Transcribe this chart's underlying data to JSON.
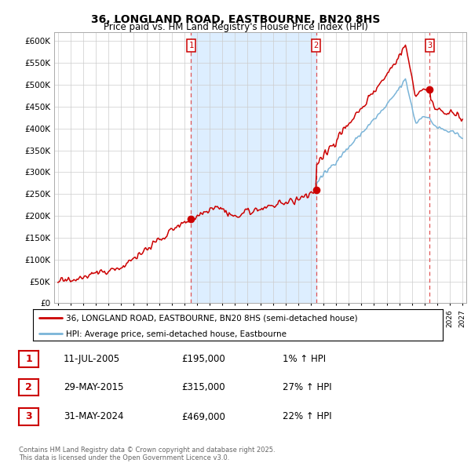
{
  "title": "36, LONGLAND ROAD, EASTBOURNE, BN20 8HS",
  "subtitle": "Price paid vs. HM Land Registry's House Price Index (HPI)",
  "ylim": [
    0,
    620000
  ],
  "yticks": [
    0,
    50000,
    100000,
    150000,
    200000,
    250000,
    300000,
    350000,
    400000,
    450000,
    500000,
    550000,
    600000
  ],
  "ytick_labels": [
    "£0",
    "£50K",
    "£100K",
    "£150K",
    "£200K",
    "£250K",
    "£300K",
    "£350K",
    "£400K",
    "£450K",
    "£500K",
    "£550K",
    "£600K"
  ],
  "hpi_color": "#7ab4d8",
  "price_color": "#cc0000",
  "vline_color": "#dd4444",
  "background_color": "#ffffff",
  "grid_color": "#cccccc",
  "shade_color": "#ddeeff",
  "hatch_color": "#dddddd",
  "purchases": [
    {
      "date_num": 2005.53,
      "price": 195000,
      "label": "1"
    },
    {
      "date_num": 2015.41,
      "price": 315000,
      "label": "2"
    },
    {
      "date_num": 2024.41,
      "price": 469000,
      "label": "3"
    }
  ],
  "legend_entries": [
    "36, LONGLAND ROAD, EASTBOURNE, BN20 8HS (semi-detached house)",
    "HPI: Average price, semi-detached house, Eastbourne"
  ],
  "table_rows": [
    {
      "num": "1",
      "date": "11-JUL-2005",
      "price": "£195,000",
      "hpi": "1% ↑ HPI"
    },
    {
      "num": "2",
      "date": "29-MAY-2015",
      "price": "£315,000",
      "hpi": "27% ↑ HPI"
    },
    {
      "num": "3",
      "date": "31-MAY-2024",
      "price": "£469,000",
      "hpi": "22% ↑ HPI"
    }
  ],
  "footer": "Contains HM Land Registry data © Crown copyright and database right 2025.\nThis data is licensed under the Open Government Licence v3.0."
}
